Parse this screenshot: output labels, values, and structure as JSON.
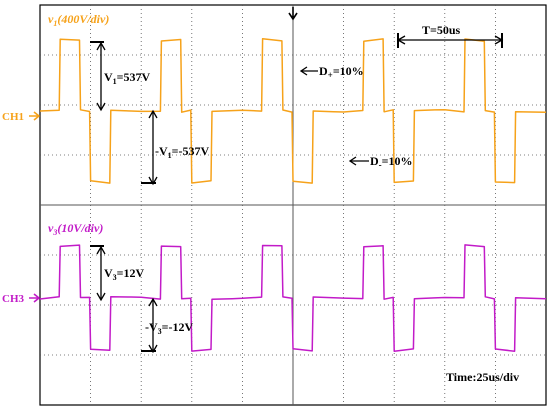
{
  "colors": {
    "ch1": "#F6A21A",
    "ch3": "#C21BC8",
    "grid": "#555555",
    "frame": "#000000",
    "annotation": "#000000",
    "background": "#FFFFFF"
  },
  "chart_data": [
    {
      "type": "line",
      "channel_label": "CH1",
      "signal_label": "v₁(400V/div)",
      "signal_symbol": "v",
      "signal_sub": "1",
      "signal_scale": "(400V/div)",
      "x_unit": "us",
      "y_unit": "V",
      "period": 50,
      "series": [
        {
          "name": "v₁",
          "x": [
            0,
            9.5,
            10,
            19.5,
            20,
            24.5,
            25,
            34.5,
            35,
            45,
            50,
            59.5,
            60,
            69.5,
            70,
            74.5,
            75,
            84.5,
            85,
            95,
            100,
            109.5,
            110,
            119.5,
            120,
            124.5,
            125,
            134.5,
            135,
            145,
            150,
            159.5,
            160,
            169.5,
            170,
            174.5,
            175,
            184.5,
            185,
            195,
            200,
            209.5,
            210,
            219.5,
            220,
            224.5,
            225,
            234.5,
            235,
            250
          ],
          "y": [
            0,
            0,
            537,
            537,
            0,
            0,
            -537,
            -537,
            0,
            0,
            0,
            0,
            537,
            537,
            0,
            0,
            -537,
            -537,
            0,
            0,
            0,
            0,
            537,
            537,
            0,
            0,
            -537,
            -537,
            0,
            0,
            0,
            0,
            537,
            537,
            0,
            0,
            -537,
            -537,
            0,
            0,
            0,
            0,
            537,
            537,
            0,
            0,
            -537,
            -537,
            0,
            0
          ]
        }
      ],
      "annotations": {
        "v_pos": {
          "symbol": "V",
          "sub": "1",
          "value": "=537V"
        },
        "v_neg": {
          "symbol": "-V",
          "sub": "1",
          "value": "=-537V"
        },
        "d_pos": {
          "symbol": "D",
          "sub": "+",
          "value": "=10%"
        },
        "d_neg": {
          "symbol": "D",
          "sub": "-",
          "value": "=10%"
        },
        "period": "T=50us"
      }
    },
    {
      "type": "line",
      "channel_label": "CH3",
      "signal_label": "v₃(10V/div)",
      "signal_symbol": "v",
      "signal_sub": "3",
      "signal_scale": "(10V/div)",
      "x_unit": "us",
      "y_unit": "V",
      "series": [
        {
          "name": "v₃",
          "x": [
            0,
            9.5,
            10,
            19.5,
            20,
            24.5,
            25,
            34.5,
            35,
            45,
            50,
            59.5,
            60,
            69.5,
            70,
            74.5,
            75,
            84.5,
            85,
            95,
            100,
            109.5,
            110,
            119.5,
            120,
            124.5,
            125,
            134.5,
            135,
            145,
            150,
            159.5,
            160,
            169.5,
            170,
            174.5,
            175,
            184.5,
            185,
            195,
            200,
            209.5,
            210,
            219.5,
            220,
            224.5,
            225,
            234.5,
            235,
            250
          ],
          "y": [
            0,
            0,
            12,
            12,
            0,
            0,
            -12,
            -12,
            0,
            0,
            0,
            0,
            12,
            12,
            0,
            0,
            -12,
            -12,
            0,
            0,
            0,
            0,
            12,
            12,
            0,
            0,
            -12,
            -12,
            0,
            0,
            0,
            0,
            12,
            12,
            0,
            0,
            -12,
            -12,
            0,
            0,
            0,
            0,
            12,
            12,
            0,
            0,
            -12,
            -12,
            0,
            0
          ]
        }
      ],
      "annotations": {
        "v_pos": {
          "symbol": "V",
          "sub": "3",
          "value": "=12V"
        },
        "v_neg": {
          "symbol": "-V",
          "sub": "3",
          "value": "=-12V"
        }
      }
    }
  ],
  "timebase": "Time:25us/div"
}
